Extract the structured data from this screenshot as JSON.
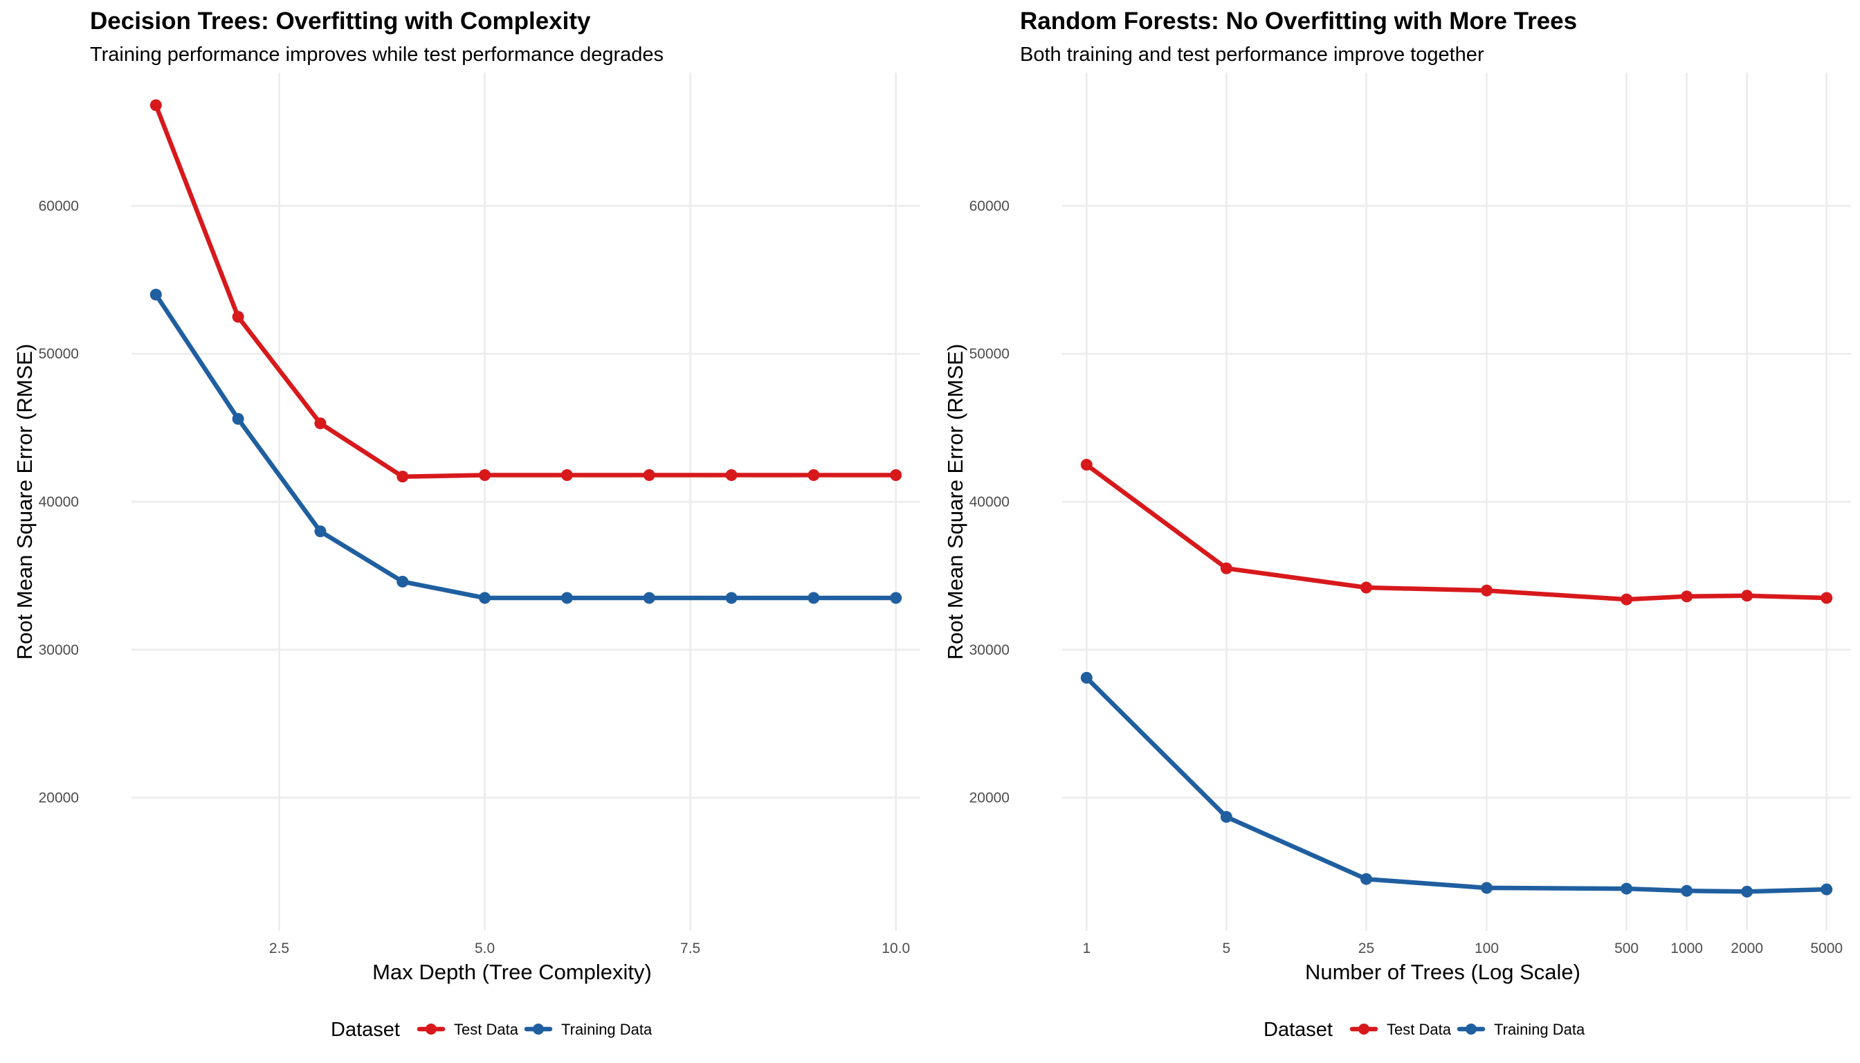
{
  "chart_data": [
    {
      "type": "line",
      "title": "Decision Trees: Overfitting with Complexity",
      "subtitle": "Training performance improves while test performance degrades",
      "xlabel": "Max Depth (Tree Complexity)",
      "ylabel": "Root Mean Square Error (RMSE)",
      "x_scale": "linear",
      "xlim": [
        1,
        10
      ],
      "ylim": [
        11000,
        69000
      ],
      "x_ticks": [
        2.5,
        5.0,
        7.5,
        10.0
      ],
      "x_tick_labels": [
        "2.5",
        "5.0",
        "7.5",
        "10.0"
      ],
      "y_ticks": [
        20000,
        30000,
        40000,
        50000,
        60000
      ],
      "y_tick_labels": [
        "20000",
        "30000",
        "40000",
        "50000",
        "60000"
      ],
      "x": [
        1,
        2,
        3,
        4,
        5,
        6,
        7,
        8,
        9,
        10
      ],
      "grid": true,
      "legend": {
        "title": "Dataset",
        "position": "bottom"
      },
      "series": [
        {
          "name": "Test Data",
          "color": "#d7191c",
          "values": [
            66800,
            52500,
            45300,
            41700,
            41800,
            41800,
            41800,
            41800,
            41800,
            41800
          ]
        },
        {
          "name": "Training Data",
          "color": "#1f5fa0",
          "values": [
            54000,
            45600,
            38000,
            34600,
            33500,
            33500,
            33500,
            33500,
            33500,
            33500
          ]
        }
      ]
    },
    {
      "type": "line",
      "title": "Random Forests: No Overfitting with More Trees",
      "subtitle": "Both training and test performance improve together",
      "xlabel": "Number of Trees (Log Scale)",
      "ylabel": "Root Mean Square Error (RMSE)",
      "x_scale": "log10",
      "xlim": [
        1,
        5000
      ],
      "ylim": [
        11000,
        69000
      ],
      "x_ticks": [
        1,
        5,
        25,
        100,
        500,
        1000,
        2000,
        5000
      ],
      "x_tick_labels": [
        "1",
        "5",
        "25",
        "100",
        "500",
        "1000",
        "2000",
        "5000"
      ],
      "y_ticks": [
        20000,
        30000,
        40000,
        50000,
        60000
      ],
      "y_tick_labels": [
        "20000",
        "30000",
        "40000",
        "50000",
        "60000"
      ],
      "x": [
        1,
        5,
        25,
        100,
        500,
        1000,
        2000,
        5000
      ],
      "grid": true,
      "legend": {
        "title": "Dataset",
        "position": "bottom"
      },
      "series": [
        {
          "name": "Test Data",
          "color": "#d7191c",
          "values": [
            42500,
            35500,
            34200,
            34000,
            33400,
            33600,
            33650,
            33500
          ]
        },
        {
          "name": "Training Data",
          "color": "#1f5fa0",
          "values": [
            28100,
            18700,
            14500,
            13900,
            13850,
            13700,
            13650,
            13800
          ]
        }
      ]
    }
  ]
}
